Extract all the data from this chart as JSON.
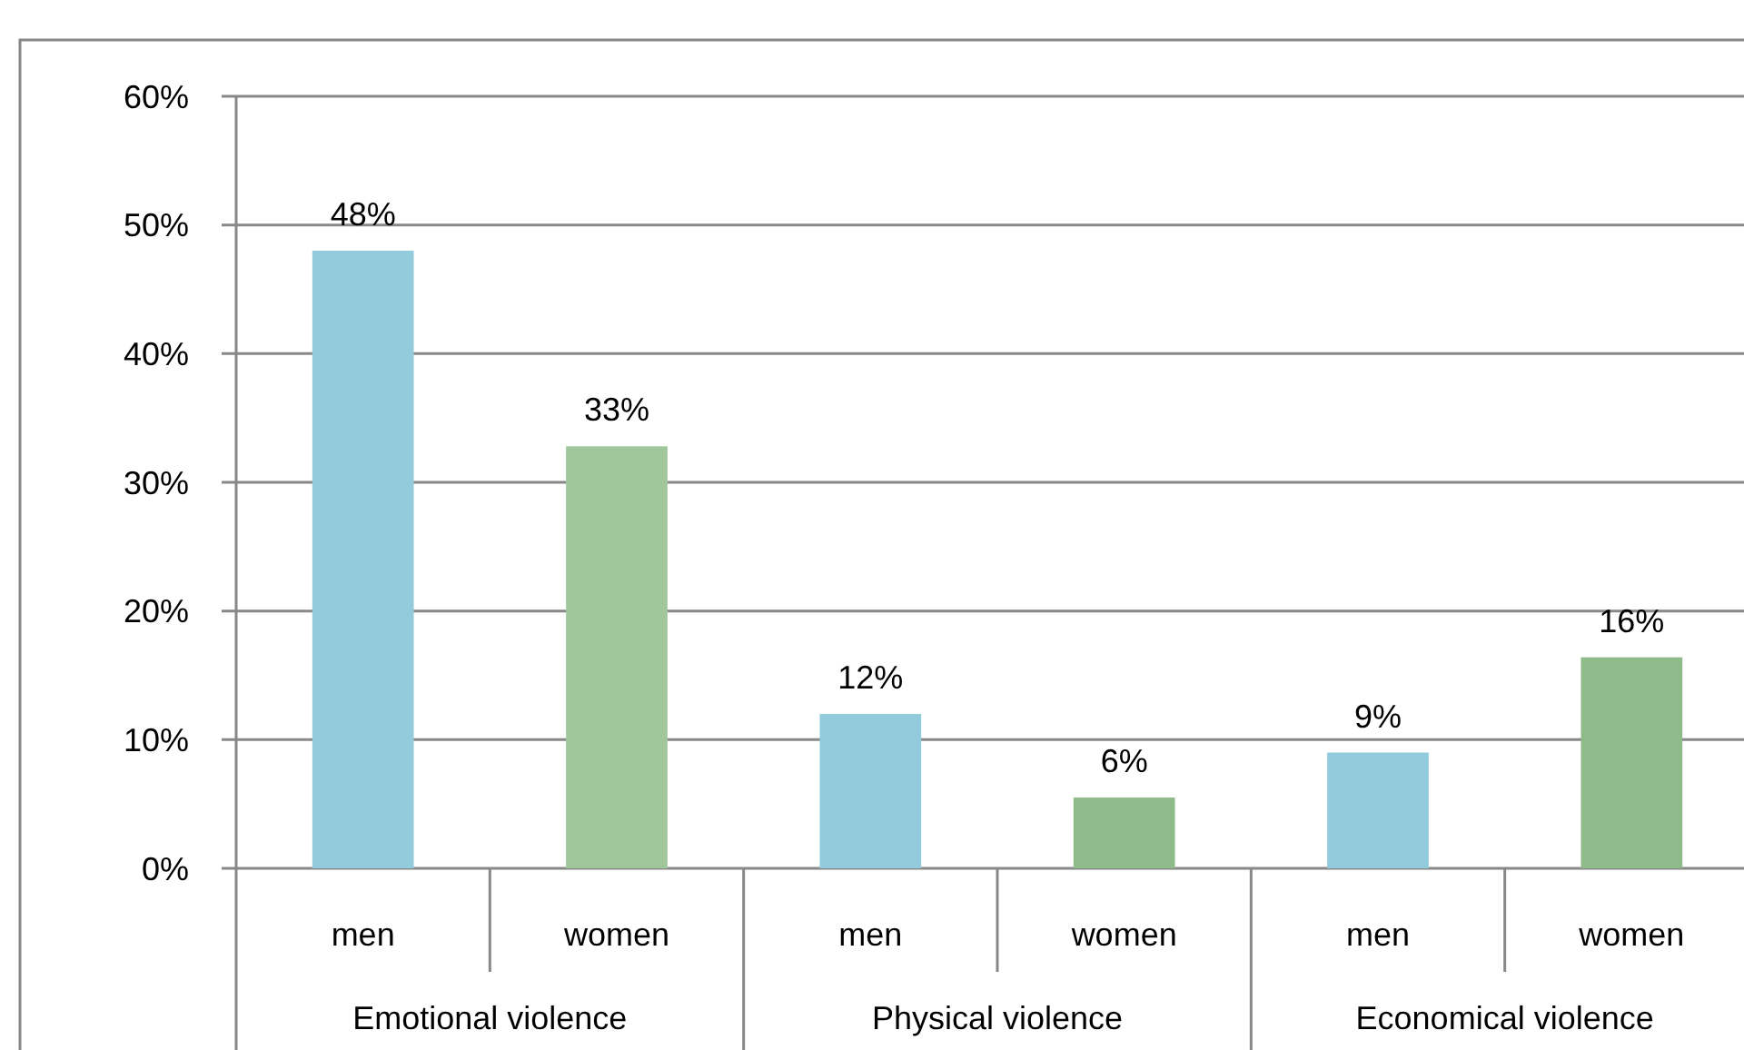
{
  "chart_data": {
    "type": "bar",
    "categories": [
      "men",
      "women",
      "men",
      "women",
      "men",
      "women"
    ],
    "values": [
      48,
      32.8,
      12,
      5.5,
      9,
      16.4
    ],
    "value_labels": [
      "48%",
      "33%",
      "12%",
      "6%",
      "9%",
      "16%"
    ],
    "colors": [
      "#92cbdc",
      "#a0c79c",
      "#92cbdc",
      "#8fbb8a",
      "#92cbdc",
      "#8fbb8a"
    ],
    "ylim": [
      0,
      60
    ],
    "yticks": [
      {
        "value": 0,
        "label": "0%"
      },
      {
        "value": 10,
        "label": "10%"
      },
      {
        "value": 20,
        "label": "20%"
      },
      {
        "value": 30,
        "label": "30%"
      },
      {
        "value": 40,
        "label": "40%"
      },
      {
        "value": 50,
        "label": "50%"
      },
      {
        "value": 60,
        "label": "60%"
      }
    ],
    "grid": "y",
    "annotations": [
      "Emotional violence",
      "Physical violence",
      "Economical violence"
    ]
  }
}
